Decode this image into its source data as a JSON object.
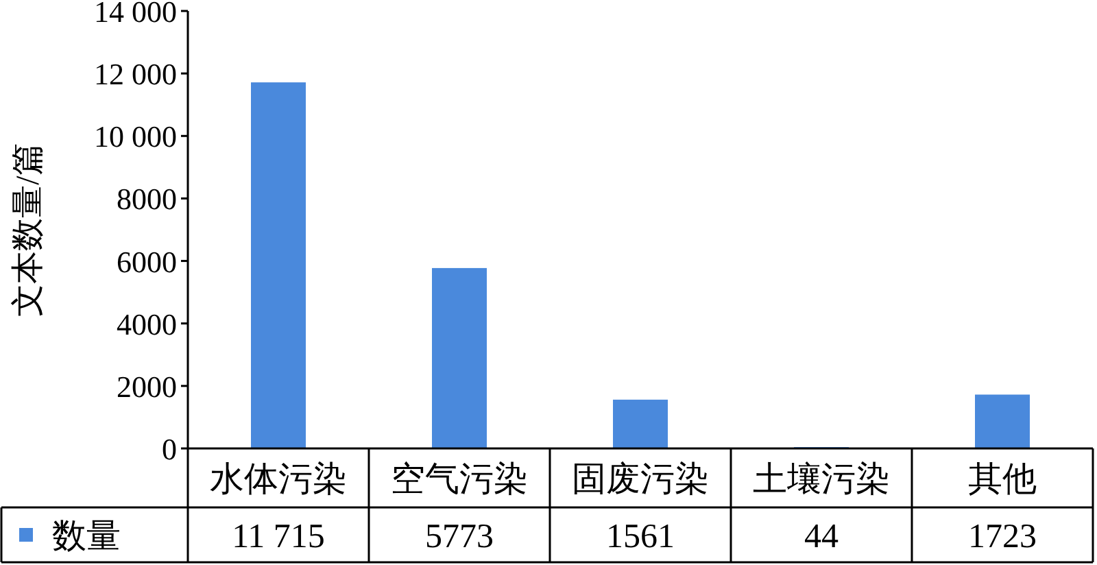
{
  "chart_data": {
    "type": "bar",
    "ylabel": "文本数量/篇",
    "categories": [
      "水体污染",
      "空气污染",
      "固废污染",
      "土壤污染",
      "其他"
    ],
    "series": [
      {
        "name": "数量",
        "color": "#4a89dc",
        "values": [
          11715,
          5773,
          1561,
          44,
          1723
        ],
        "value_labels": [
          "11 715",
          "5773",
          "1561",
          "44",
          "1723"
        ]
      }
    ],
    "ylim": [
      0,
      14000
    ],
    "yticks": [
      0,
      2000,
      4000,
      6000,
      8000,
      {
        "value": 10000,
        "label": "10 000"
      },
      {
        "value": 12000,
        "label": "12 000"
      },
      {
        "value": 14000,
        "label": "14 000"
      }
    ],
    "grid": false,
    "legend": "bottom"
  }
}
